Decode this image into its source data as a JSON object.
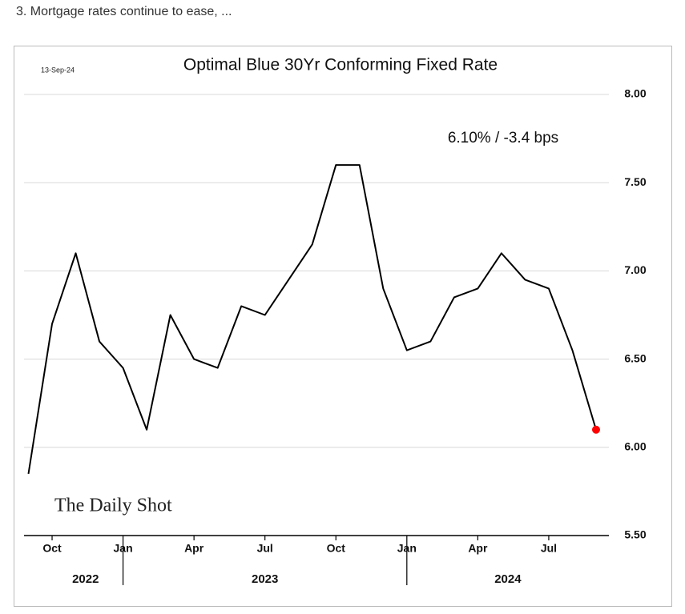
{
  "header": "3. Mortgage rates continue to ease, ...",
  "chart_data": {
    "type": "line",
    "title": "Optimal Blue 30Yr Conforming Fixed Rate",
    "date_label": "13-Sep-24",
    "annotation": "6.10%  /  -3.4 bps",
    "source": "The Daily Shot",
    "x": [
      "2022-09",
      "2022-10",
      "2022-11",
      "2022-12",
      "2023-01",
      "2023-02",
      "2023-03",
      "2023-04",
      "2023-05",
      "2023-06",
      "2023-07",
      "2023-08",
      "2023-09",
      "2023-10",
      "2023-11",
      "2023-12",
      "2024-01",
      "2024-02",
      "2024-03",
      "2024-04",
      "2024-05",
      "2024-06",
      "2024-07",
      "2024-08",
      "2024-09"
    ],
    "series": [
      {
        "name": "30Yr Conforming Fixed Rate",
        "color": "#000000",
        "values": [
          5.85,
          6.7,
          7.1,
          6.6,
          6.45,
          6.1,
          6.75,
          6.5,
          6.45,
          6.8,
          6.75,
          6.95,
          7.15,
          7.6,
          7.6,
          6.9,
          6.55,
          6.6,
          6.85,
          6.9,
          7.1,
          6.95,
          6.9,
          6.55,
          6.1
        ]
      }
    ],
    "last_point_color": "#ff0000",
    "xlim": [
      "2022-09",
      "2024-10"
    ],
    "xticks": [
      {
        "value": "2022-10",
        "label": "Oct"
      },
      {
        "value": "2023-01",
        "label": "Jan"
      },
      {
        "value": "2023-04",
        "label": "Apr"
      },
      {
        "value": "2023-07",
        "label": "Jul"
      },
      {
        "value": "2023-10",
        "label": "Oct"
      },
      {
        "value": "2024-01",
        "label": "Jan"
      },
      {
        "value": "2024-04",
        "label": "Apr"
      },
      {
        "value": "2024-07",
        "label": "Jul"
      }
    ],
    "years": [
      "2022",
      "2023",
      "2024"
    ],
    "ylim": [
      5.5,
      8.0
    ],
    "yticks": [
      {
        "value": 5.5,
        "label": "5.50"
      },
      {
        "value": 6.0,
        "label": "6.00"
      },
      {
        "value": 6.5,
        "label": "6.50"
      },
      {
        "value": 7.0,
        "label": "7.00"
      },
      {
        "value": 7.5,
        "label": "7.50"
      },
      {
        "value": 8.0,
        "label": "8.00"
      }
    ],
    "grid": true
  }
}
